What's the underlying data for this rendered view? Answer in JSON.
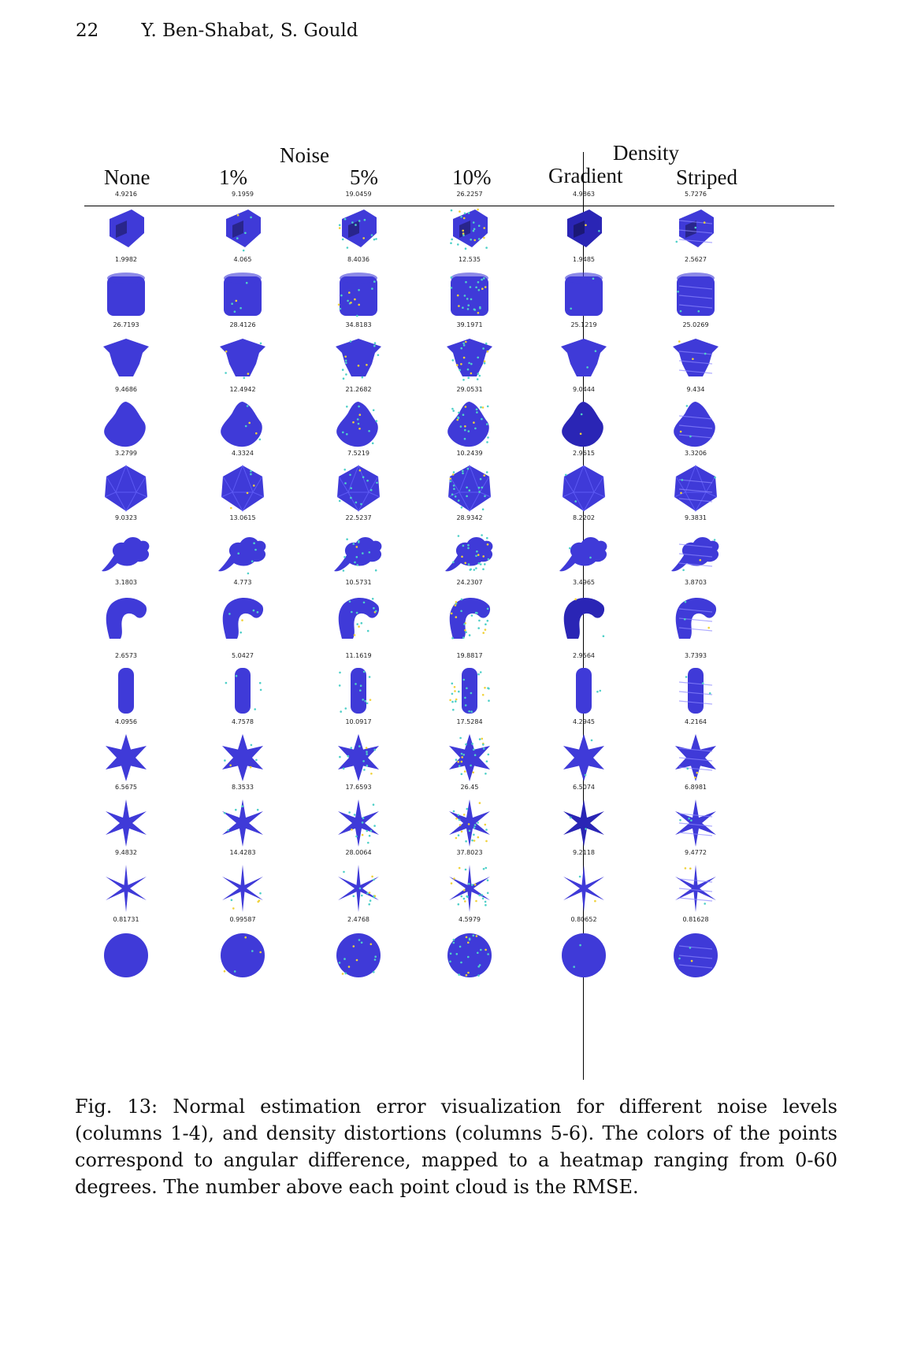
{
  "header": {
    "page_number": "22",
    "authors": "Y. Ben-Shabat, S. Gould"
  },
  "figure": {
    "group_labels": {
      "noise": "Noise",
      "density": "Density"
    },
    "columns": [
      "None",
      "1%",
      "5%",
      "10%",
      "Gradient",
      "Striped"
    ],
    "rows": [
      {
        "shape": "box-house-icon",
        "rmse": [
          "4.9216",
          "9.1959",
          "19.0459",
          "26.2257",
          "4.9863",
          "5.7276"
        ]
      },
      {
        "shape": "cylinder-icon",
        "rmse": [
          "1.9982",
          "4.065",
          "8.4036",
          "12.535",
          "1.9485",
          "2.5627"
        ]
      },
      {
        "shape": "column-capital-icon",
        "rmse": [
          "26.7193",
          "28.4126",
          "34.8183",
          "39.1971",
          "25.1219",
          "25.0269"
        ]
      },
      {
        "shape": "sculpture-icon",
        "rmse": [
          "9.4686",
          "12.4942",
          "21.2682",
          "29.0531",
          "9.0444",
          "9.434"
        ]
      },
      {
        "shape": "icosahedron-icon",
        "rmse": [
          "3.2799",
          "4.3324",
          "7.5219",
          "10.2439",
          "2.9615",
          "3.3206"
        ]
      },
      {
        "shape": "dragon-icon",
        "rmse": [
          "9.0323",
          "13.0615",
          "22.5237",
          "28.9342",
          "8.2202",
          "9.3831"
        ]
      },
      {
        "shape": "bent-tube-icon",
        "rmse": [
          "3.1803",
          "4.773",
          "10.5731",
          "24.2307",
          "3.4965",
          "3.8703"
        ]
      },
      {
        "shape": "tall-cylinder-icon",
        "rmse": [
          "2.6573",
          "5.0427",
          "11.1619",
          "19.8817",
          "2.9564",
          "3.7393"
        ]
      },
      {
        "shape": "star-thick-icon",
        "rmse": [
          "4.0956",
          "4.7578",
          "10.0917",
          "17.5284",
          "4.2945",
          "4.2164"
        ]
      },
      {
        "shape": "star-medium-icon",
        "rmse": [
          "6.5675",
          "8.3533",
          "17.6593",
          "26.45",
          "6.5074",
          "6.8981"
        ]
      },
      {
        "shape": "star-thin-icon",
        "rmse": [
          "9.4832",
          "14.4283",
          "28.0064",
          "37.8023",
          "9.2118",
          "9.4772"
        ]
      },
      {
        "shape": "sphere-icon",
        "rmse": [
          "0.81731",
          "0.99587",
          "2.4768",
          "4.5979",
          "0.80652",
          "0.81628"
        ]
      }
    ],
    "colors": {
      "base": "#3f3ad8",
      "dark": "#2a25b5",
      "noise": "#4fd0c8",
      "hot": "#f0d23a"
    }
  },
  "caption": "Fig. 13: Normal estimation error visualization for different noise levels (columns 1-4), and density distortions (columns 5-6). The colors of the points correspond to angular difference, mapped to a heatmap ranging from 0-60 degrees. The number above each point cloud is the RMSE."
}
